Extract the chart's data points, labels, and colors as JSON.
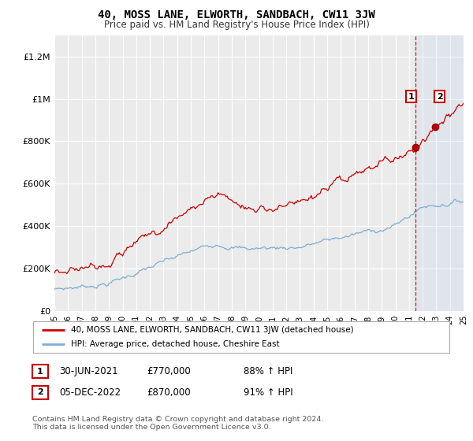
{
  "title": "40, MOSS LANE, ELWORTH, SANDBACH, CW11 3JW",
  "subtitle": "Price paid vs. HM Land Registry's House Price Index (HPI)",
  "title_fontsize": 10,
  "subtitle_fontsize": 8.5,
  "background_color": "#ffffff",
  "plot_bg_color": "#ebebeb",
  "red_line_color": "#cc0000",
  "blue_line_color": "#7bafd4",
  "dashed_red_color": "#cc0000",
  "annotation_box_color": "#cc0000",
  "ylim": [
    0,
    1300000
  ],
  "yticks": [
    0,
    200000,
    400000,
    600000,
    800000,
    1000000,
    1200000
  ],
  "ytick_labels": [
    "£0",
    "£200K",
    "£400K",
    "£600K",
    "£800K",
    "£1M",
    "£1.2M"
  ],
  "xmin_year": 1995,
  "xmax_year": 2025,
  "xtick_years": [
    1995,
    1996,
    1997,
    1998,
    1999,
    2000,
    2001,
    2002,
    2003,
    2004,
    2005,
    2006,
    2007,
    2008,
    2009,
    2010,
    2011,
    2012,
    2013,
    2014,
    2015,
    2016,
    2017,
    2018,
    2019,
    2020,
    2021,
    2022,
    2023,
    2024,
    2025
  ],
  "sale1_x": 2021.5,
  "sale1_y": 770000,
  "sale1_label": "1",
  "sale2_x": 2022.92,
  "sale2_y": 870000,
  "sale2_label": "2",
  "shade_start": 2021.5,
  "shade_end": 2025,
  "legend_red": "40, MOSS LANE, ELWORTH, SANDBACH, CW11 3JW (detached house)",
  "legend_blue": "HPI: Average price, detached house, Cheshire East",
  "note1_num": "1",
  "note1_date": "30-JUN-2021",
  "note1_price": "£770,000",
  "note1_hpi": "88% ↑ HPI",
  "note2_num": "2",
  "note2_date": "05-DEC-2022",
  "note2_price": "£870,000",
  "note2_hpi": "91% ↑ HPI",
  "footer": "Contains HM Land Registry data © Crown copyright and database right 2024.\nThis data is licensed under the Open Government Licence v3.0."
}
